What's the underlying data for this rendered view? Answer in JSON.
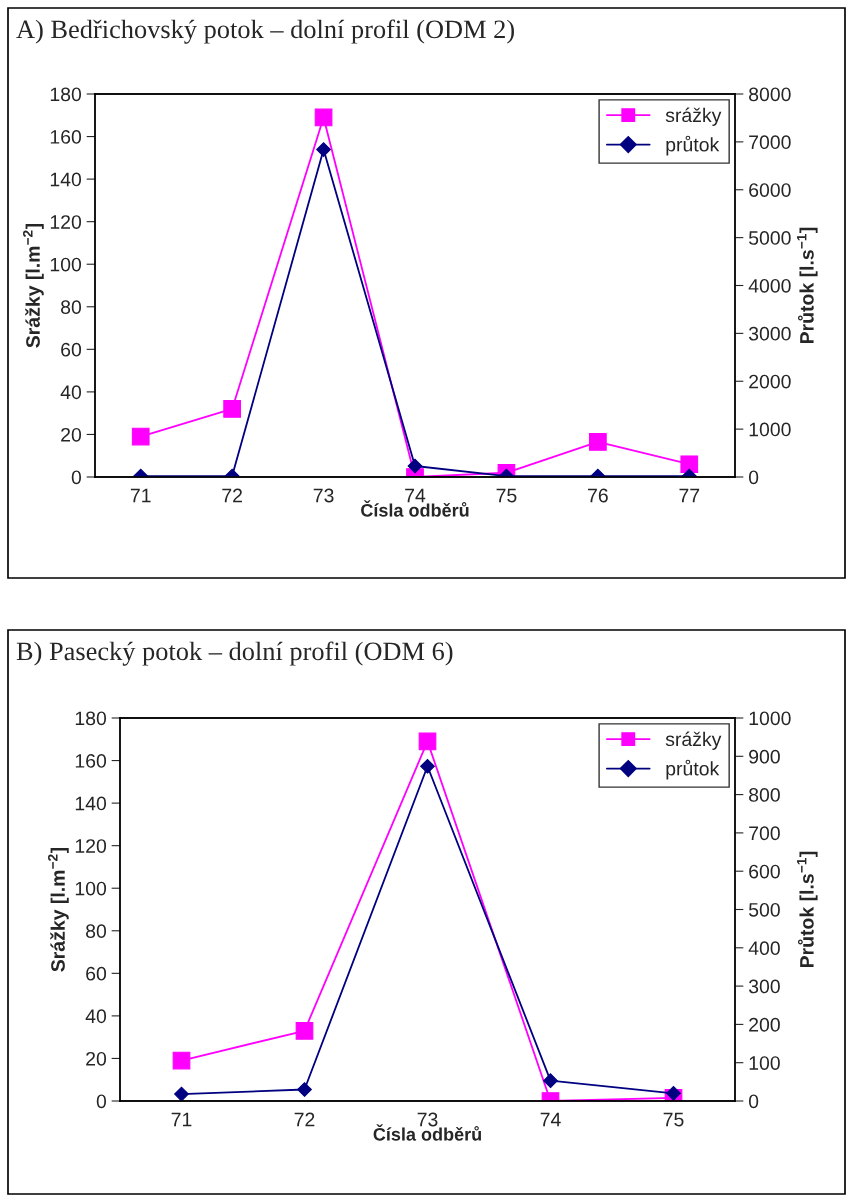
{
  "chart_data": [
    {
      "type": "line",
      "title": "A) Bedřichovský potok – dolní profil (ODM 2)",
      "xlabel": "Čísla odběrů",
      "ylabel": "Srážky [l.m$^{−2}$]",
      "y2label": "Průtok [l.s$^{−1}$]",
      "categories": [
        "71",
        "72",
        "73",
        "74",
        "75",
        "76",
        "77"
      ],
      "series": [
        {
          "name": "srážky",
          "color": "#ff00ff",
          "marker": "square",
          "values": [
            19,
            32,
            169,
            0,
            2,
            16.5,
            6
          ]
        },
        {
          "name": "průtok",
          "color": "#000080",
          "marker": "diamond",
          "axis": "y2",
          "values": [
            20,
            20,
            6840,
            230,
            20,
            20,
            20
          ]
        }
      ],
      "ylim": [
        0,
        180
      ],
      "yticks": [
        0,
        20,
        40,
        60,
        80,
        100,
        120,
        140,
        160,
        180
      ],
      "y2lim": [
        0,
        8000
      ],
      "y2ticks": [
        0,
        1000,
        2000,
        3000,
        4000,
        5000,
        6000,
        7000,
        8000
      ],
      "legend": "top right",
      "grid": false
    },
    {
      "type": "line",
      "title": "B) Pasecký potok – dolní profil (ODM 6)",
      "xlabel": "Čísla odběrů",
      "ylabel": "Srážky [l.m$^{−2}$]",
      "y2label": "Průtok [l.s$^{−1}$]",
      "categories": [
        "71",
        "72",
        "73",
        "74",
        "75"
      ],
      "series": [
        {
          "name": "srážky",
          "color": "#ff00ff",
          "marker": "square",
          "values": [
            19,
            33,
            169,
            0,
            1.5
          ]
        },
        {
          "name": "průtok",
          "color": "#000080",
          "marker": "diamond",
          "axis": "y2",
          "values": [
            18,
            30,
            874,
            53,
            20
          ]
        }
      ],
      "ylim": [
        0,
        180
      ],
      "yticks": [
        0,
        20,
        40,
        60,
        80,
        100,
        120,
        140,
        160,
        180
      ],
      "y2lim": [
        0,
        1000
      ],
      "y2ticks": [
        0,
        100,
        200,
        300,
        400,
        500,
        600,
        700,
        800,
        900,
        1000
      ],
      "legend": "top right",
      "grid": false
    }
  ]
}
